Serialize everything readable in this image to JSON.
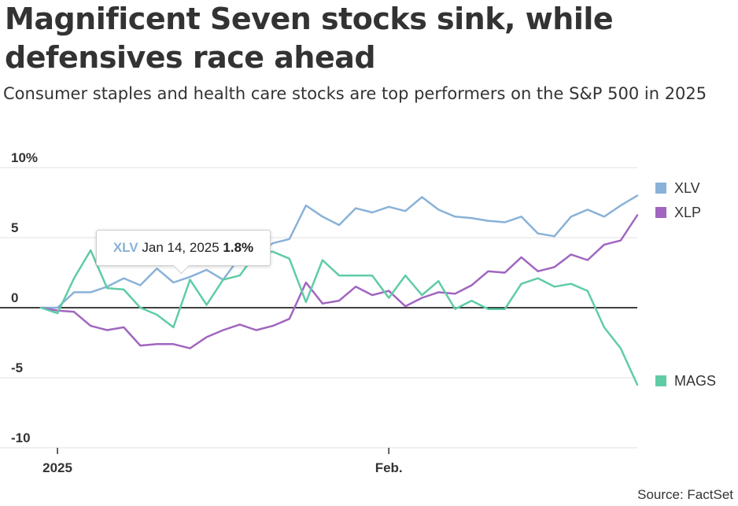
{
  "title": "Magnificent Seven stocks sink, while defensives race ahead",
  "subtitle": "Consumer staples and health care stocks are top performers on the S&P 500 in 2025",
  "source": "Source: FactSet",
  "tooltip": {
    "series": "XLV",
    "date": "Jan 14, 2025",
    "value": "1.8%"
  },
  "colors": {
    "XLV": "#89b2d8",
    "XLP": "#a066bf",
    "MAGS": "#5fcca6",
    "zero": "#000000",
    "grid": "#e0e0e0"
  },
  "chart_data": {
    "type": "line",
    "title": "Magnificent Seven stocks sink, while defensives race ahead",
    "xlabel": "",
    "ylabel": "",
    "ylim": [
      -10,
      10
    ],
    "yticks": [
      10,
      5,
      0,
      -5,
      -10
    ],
    "ytick_labels": [
      "10%",
      "5",
      "0",
      "-5",
      "-10"
    ],
    "xticks": [
      {
        "index": 1,
        "label": "2025"
      },
      {
        "index": 21,
        "label": "Feb."
      }
    ],
    "x": [
      0,
      1,
      2,
      3,
      4,
      5,
      6,
      7,
      8,
      9,
      10,
      11,
      12,
      13,
      14,
      15,
      16,
      17,
      18,
      19,
      20,
      21,
      22,
      23,
      24,
      25,
      26,
      27,
      28,
      29,
      30,
      31,
      32,
      33,
      34,
      35,
      36
    ],
    "series": [
      {
        "name": "XLV",
        "values": [
          0,
          0,
          1.1,
          1.1,
          1.5,
          2.1,
          1.6,
          2.8,
          1.8,
          2.2,
          2.7,
          2.0,
          3.6,
          3.8,
          4.6,
          4.9,
          7.3,
          6.5,
          5.9,
          7.1,
          6.8,
          7.2,
          6.9,
          7.9,
          7.0,
          6.5,
          6.4,
          6.2,
          6.1,
          6.5,
          5.3,
          5.1,
          6.5,
          7.0,
          6.5,
          7.3,
          8.0
        ]
      },
      {
        "name": "XLP",
        "values": [
          0,
          -0.2,
          -0.3,
          -1.3,
          -1.6,
          -1.4,
          -2.7,
          -2.6,
          -2.6,
          -2.9,
          -2.1,
          -1.6,
          -1.2,
          -1.6,
          -1.3,
          -0.8,
          1.8,
          0.3,
          0.5,
          1.5,
          0.9,
          1.2,
          0.1,
          0.7,
          1.1,
          1.0,
          1.6,
          2.6,
          2.5,
          3.6,
          2.6,
          2.9,
          3.8,
          3.4,
          4.5,
          4.8,
          6.6
        ]
      },
      {
        "name": "MAGS",
        "values": [
          0,
          -0.4,
          2.1,
          4.1,
          1.4,
          1.3,
          0,
          -0.5,
          -1.4,
          2.0,
          0.2,
          2.0,
          2.3,
          3.9,
          4.0,
          3.5,
          0.4,
          3.4,
          2.3,
          2.3,
          2.3,
          0.7,
          2.3,
          0.9,
          1.9,
          -0.1,
          0.5,
          -0.1,
          -0.1,
          1.7,
          2.1,
          1.5,
          1.7,
          1.2,
          -1.4,
          -2.9,
          -5.5
        ]
      }
    ],
    "legend": [
      "XLV",
      "XLP",
      "MAGS"
    ]
  }
}
